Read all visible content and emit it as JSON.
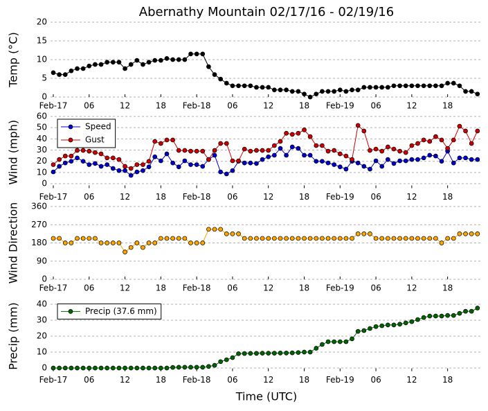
{
  "chart_data": [
    {
      "type": "line",
      "title": "Abernathy Mountain 02/17/16 - 02/19/16",
      "ylabel": "Temp (°C)",
      "x": [
        0,
        1,
        2,
        3,
        4,
        5,
        6,
        7,
        8,
        9,
        10,
        11,
        12,
        13,
        14,
        15,
        16,
        17,
        18,
        19,
        20,
        21,
        22,
        23,
        24,
        25,
        26,
        27,
        28,
        29,
        30,
        31,
        32,
        33,
        34,
        35,
        36,
        37,
        38,
        39,
        40,
        41,
        42,
        43,
        44,
        45,
        46,
        47,
        48,
        49,
        50,
        51,
        52,
        53,
        54,
        55,
        56,
        57,
        58,
        59,
        60,
        61,
        62,
        63,
        64,
        65,
        66,
        67,
        68,
        69,
        70,
        71
      ],
      "xlim": [
        0,
        71.3
      ],
      "xticks": [
        {
          "value": 0,
          "label": "Feb-17"
        },
        {
          "value": 6,
          "label": "06"
        },
        {
          "value": 12,
          "label": "12"
        },
        {
          "value": 18,
          "label": "18"
        },
        {
          "value": 24,
          "label": "Feb-18"
        },
        {
          "value": 30,
          "label": "06"
        },
        {
          "value": 36,
          "label": "12"
        },
        {
          "value": 42,
          "label": "18"
        },
        {
          "value": 48,
          "label": "Feb-19"
        },
        {
          "value": 54,
          "label": "06"
        },
        {
          "value": 60,
          "label": "12"
        },
        {
          "value": 66,
          "label": "18"
        }
      ],
      "ylim": [
        0,
        20
      ],
      "yticks": [
        0,
        5,
        10,
        15,
        20
      ],
      "grid": true,
      "series": [
        {
          "color": "#000000",
          "values": [
            6.5,
            6,
            6,
            7,
            7.6,
            7.6,
            8.3,
            8.7,
            8.7,
            9.3,
            9.3,
            9.3,
            7.6,
            8.7,
            9.8,
            8.7,
            9.3,
            9.8,
            9.8,
            10.3,
            10,
            10,
            10,
            11.5,
            11.5,
            11.5,
            8.1,
            6,
            4.8,
            3.7,
            3,
            3,
            3,
            3,
            2.6,
            2.6,
            2.6,
            1.9,
            1.9,
            1.9,
            1.5,
            1.5,
            0.8,
            0,
            0.8,
            1.5,
            1.5,
            1.5,
            1.9,
            1.5,
            1.9,
            1.9,
            2.6,
            2.6,
            2.6,
            2.6,
            2.6,
            3,
            3,
            3,
            3,
            3,
            3,
            3,
            3,
            3,
            3.7,
            3.7,
            3,
            1.5,
            1.5,
            0.8
          ]
        }
      ]
    },
    {
      "type": "line",
      "ylabel": "Wind (mph)",
      "x": [
        0,
        1,
        2,
        3,
        4,
        5,
        6,
        7,
        8,
        9,
        10,
        11,
        12,
        13,
        14,
        15,
        16,
        17,
        18,
        19,
        20,
        21,
        22,
        23,
        24,
        25,
        26,
        27,
        28,
        29,
        30,
        31,
        32,
        33,
        34,
        35,
        36,
        37,
        38,
        39,
        40,
        41,
        42,
        43,
        44,
        45,
        46,
        47,
        48,
        49,
        50,
        51,
        52,
        53,
        54,
        55,
        56,
        57,
        58,
        59,
        60,
        61,
        62,
        63,
        64,
        65,
        66,
        67,
        68,
        69,
        70,
        71
      ],
      "xlim": [
        0,
        71.3
      ],
      "xticks": [
        {
          "value": 0,
          "label": "Feb-17"
        },
        {
          "value": 6,
          "label": "06"
        },
        {
          "value": 12,
          "label": "12"
        },
        {
          "value": 18,
          "label": "18"
        },
        {
          "value": 24,
          "label": "Feb-18"
        },
        {
          "value": 30,
          "label": "06"
        },
        {
          "value": 36,
          "label": "12"
        },
        {
          "value": 42,
          "label": "18"
        },
        {
          "value": 48,
          "label": "Feb-19"
        },
        {
          "value": 54,
          "label": "06"
        },
        {
          "value": 60,
          "label": "12"
        },
        {
          "value": 66,
          "label": "18"
        }
      ],
      "ylim": [
        -4,
        60
      ],
      "yticks": [
        0,
        10,
        20,
        30,
        40,
        50,
        60
      ],
      "grid": true,
      "legend": "upper left",
      "series": [
        {
          "name": "Speed",
          "color": "#0000cc",
          "values": [
            10.5,
            15.5,
            18.5,
            20,
            23,
            20,
            17,
            18,
            15.5,
            17,
            13.6,
            11.7,
            11.7,
            7.4,
            10.5,
            11.7,
            15,
            24,
            20.4,
            26.6,
            18.5,
            15,
            20.4,
            17,
            17,
            15.5,
            21.6,
            25.4,
            10.5,
            8.7,
            11.7,
            20,
            18.5,
            18.5,
            18,
            21.6,
            24,
            25.4,
            31.5,
            25.4,
            32.8,
            31.5,
            25.4,
            25.4,
            20,
            20,
            18.5,
            17,
            15,
            13,
            20,
            18.5,
            15.5,
            13,
            20.4,
            15.5,
            21.6,
            18,
            20.4,
            20.4,
            21.6,
            21.6,
            23,
            25.4,
            24.7,
            20,
            29,
            18.5,
            23,
            23,
            21.6,
            21.6
          ]
        },
        {
          "name": "Gust",
          "color": "#cc0000",
          "values": [
            17,
            21.6,
            24.7,
            24.7,
            29.7,
            29.7,
            29,
            27.8,
            26.6,
            23,
            23,
            21.6,
            15.5,
            13.6,
            17,
            17,
            20,
            37.7,
            35.9,
            39,
            39,
            29.7,
            29.7,
            29,
            29,
            29,
            21.6,
            29.7,
            35.9,
            35.9,
            20.4,
            20.4,
            30.9,
            29,
            29.7,
            29.7,
            29.7,
            34,
            37.7,
            45,
            44,
            45,
            48,
            42,
            34,
            34,
            29,
            29.7,
            26.6,
            24.7,
            21.6,
            52,
            47,
            29.7,
            30.9,
            29,
            32.8,
            30.9,
            29,
            27.8,
            34,
            35.9,
            39,
            37.7,
            42,
            39,
            31.5,
            39,
            51.3,
            47,
            35.9,
            47
          ]
        }
      ]
    },
    {
      "type": "line",
      "ylabel": "Wind Direction",
      "x": [
        0,
        1,
        2,
        3,
        4,
        5,
        6,
        7,
        8,
        9,
        10,
        11,
        12,
        13,
        14,
        15,
        16,
        17,
        18,
        19,
        20,
        21,
        22,
        23,
        24,
        25,
        26,
        27,
        28,
        29,
        30,
        31,
        32,
        33,
        34,
        35,
        36,
        37,
        38,
        39,
        40,
        41,
        42,
        43,
        44,
        45,
        46,
        47,
        48,
        49,
        50,
        51,
        52,
        53,
        54,
        55,
        56,
        57,
        58,
        59,
        60,
        61,
        62,
        63,
        64,
        65,
        66,
        67,
        68,
        69,
        70,
        71
      ],
      "xlim": [
        0,
        71.3
      ],
      "xticks": [
        {
          "value": 0,
          "label": "Feb-17"
        },
        {
          "value": 6,
          "label": "06"
        },
        {
          "value": 12,
          "label": "12"
        },
        {
          "value": 18,
          "label": "18"
        },
        {
          "value": 24,
          "label": "Feb-18"
        },
        {
          "value": 30,
          "label": "06"
        },
        {
          "value": 36,
          "label": "12"
        },
        {
          "value": 42,
          "label": "18"
        },
        {
          "value": 48,
          "label": "Feb-19"
        },
        {
          "value": 54,
          "label": "06"
        },
        {
          "value": 60,
          "label": "12"
        },
        {
          "value": 66,
          "label": "18"
        }
      ],
      "ylim": [
        0,
        360
      ],
      "yticks": [
        0,
        90,
        180,
        270,
        360
      ],
      "grid": true,
      "series": [
        {
          "color": "#ffa500",
          "values": [
            202.5,
            202.5,
            180,
            180,
            202.5,
            202.5,
            202.5,
            202.5,
            180,
            180,
            180,
            180,
            135,
            157.5,
            180,
            157.5,
            180,
            180,
            202.5,
            202.5,
            202.5,
            202.5,
            202.5,
            180,
            180,
            180,
            247.5,
            247.5,
            247.5,
            225,
            225,
            225,
            202.5,
            202.5,
            202.5,
            202.5,
            202.5,
            202.5,
            202.5,
            202.5,
            202.5,
            202.5,
            202.5,
            202.5,
            202.5,
            202.5,
            202.5,
            202.5,
            202.5,
            202.5,
            202.5,
            225,
            225,
            225,
            202.5,
            202.5,
            202.5,
            202.5,
            202.5,
            202.5,
            202.5,
            202.5,
            202.5,
            202.5,
            202.5,
            180,
            202.5,
            202.5,
            225,
            225,
            225,
            225
          ]
        }
      ]
    },
    {
      "type": "line",
      "ylabel": "Precip (mm)",
      "xlabel": "Time (UTC)",
      "x": [
        0,
        1,
        2,
        3,
        4,
        5,
        6,
        7,
        8,
        9,
        10,
        11,
        12,
        13,
        14,
        15,
        16,
        17,
        18,
        19,
        20,
        21,
        22,
        23,
        24,
        25,
        26,
        27,
        28,
        29,
        30,
        31,
        32,
        33,
        34,
        35,
        36,
        37,
        38,
        39,
        40,
        41,
        42,
        43,
        44,
        45,
        46,
        47,
        48,
        49,
        50,
        51,
        52,
        53,
        54,
        55,
        56,
        57,
        58,
        59,
        60,
        61,
        62,
        63,
        64,
        65,
        66,
        67,
        68,
        69,
        70,
        71
      ],
      "xlim": [
        0,
        71.3
      ],
      "xticks": [
        {
          "value": 0,
          "label": "Feb-17"
        },
        {
          "value": 6,
          "label": "06"
        },
        {
          "value": 12,
          "label": "12"
        },
        {
          "value": 18,
          "label": "18"
        },
        {
          "value": 24,
          "label": "Feb-18"
        },
        {
          "value": 30,
          "label": "06"
        },
        {
          "value": 36,
          "label": "12"
        },
        {
          "value": 42,
          "label": "18"
        },
        {
          "value": 48,
          "label": "Feb-19"
        },
        {
          "value": 54,
          "label": "06"
        },
        {
          "value": 60,
          "label": "12"
        },
        {
          "value": 66,
          "label": "18"
        }
      ],
      "ylim": [
        -2,
        42
      ],
      "yticks": [
        0,
        10,
        20,
        30,
        40
      ],
      "grid": true,
      "legend": "upper left",
      "series": [
        {
          "name": "Precip (37.6 mm)",
          "color": "#006400",
          "values": [
            0,
            0,
            0,
            0,
            0,
            0,
            0,
            0,
            0,
            0,
            0,
            0,
            0,
            0,
            0,
            0,
            0,
            0,
            0,
            0,
            0.4,
            0.5,
            0.5,
            0.5,
            0.5,
            0.5,
            1,
            1.7,
            4,
            5.2,
            6.5,
            9,
            9.1,
            9.2,
            9.2,
            9.3,
            9.3,
            9.3,
            9.4,
            9.4,
            9.5,
            9.7,
            10,
            10,
            12.4,
            14.8,
            16.5,
            16.5,
            16.5,
            16.5,
            18.3,
            23,
            23.5,
            24.8,
            26,
            26.5,
            27,
            27,
            27.5,
            28.3,
            29.1,
            30.4,
            31.7,
            32.6,
            32.6,
            32.6,
            33,
            33,
            34.3,
            35.6,
            35.6,
            37.6
          ]
        }
      ]
    }
  ]
}
